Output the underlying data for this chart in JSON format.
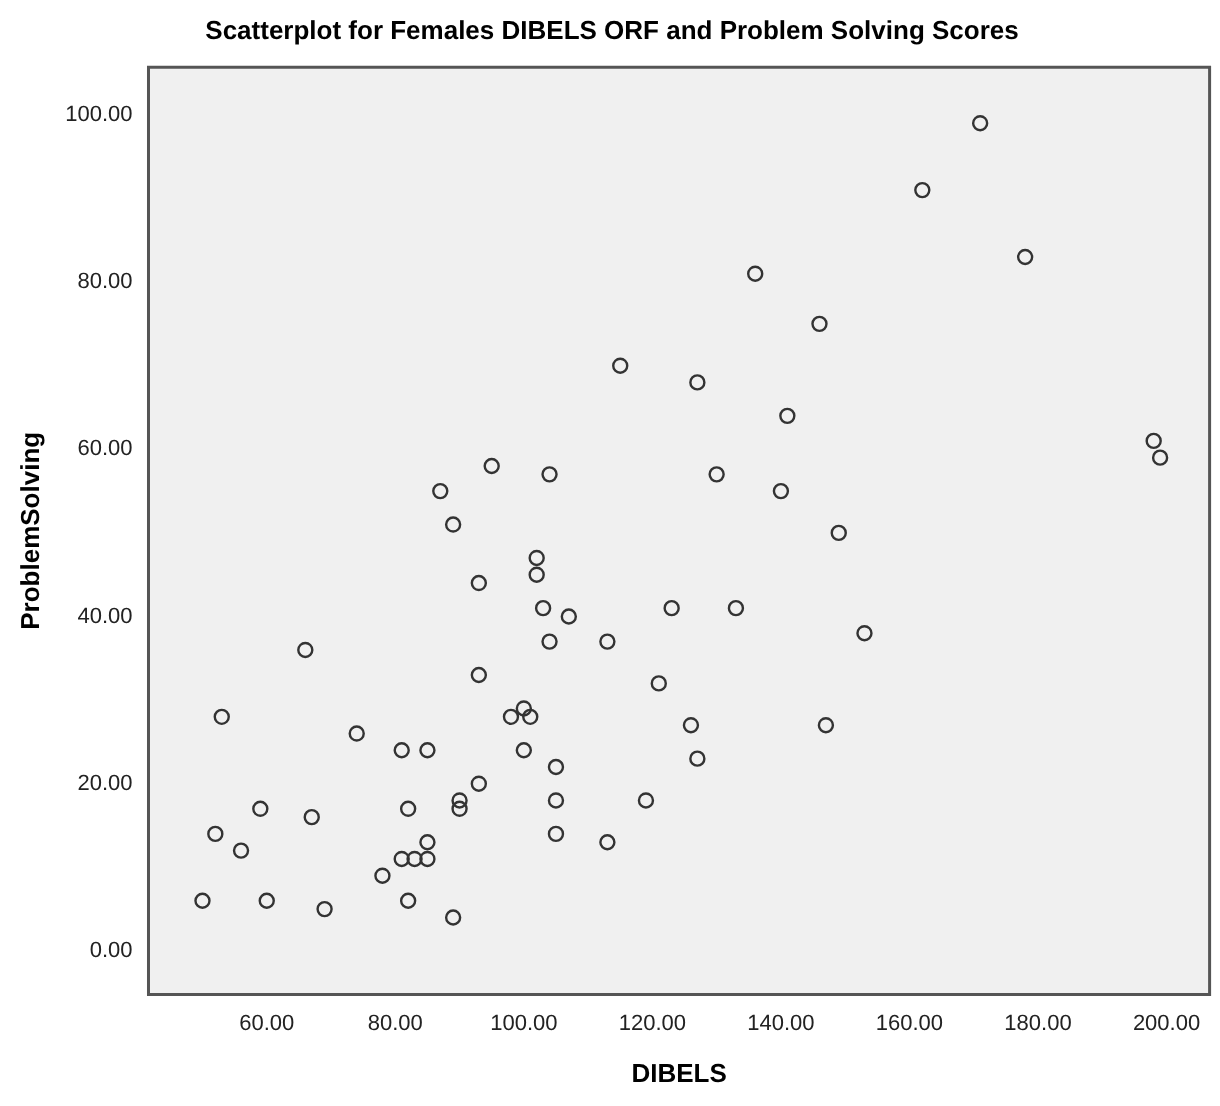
{
  "chart_data": {
    "type": "scatter",
    "title": "Scatterplot for Females DIBELS ORF and Problem Solving Scores",
    "xlabel": "DIBELS",
    "ylabel": "ProblemSolving",
    "x": [
      50,
      52,
      53,
      56,
      59,
      60,
      66,
      67,
      69,
      74,
      78,
      81,
      81,
      82,
      82,
      83,
      85,
      85,
      85,
      87,
      89,
      89,
      90,
      90,
      93,
      93,
      93,
      95,
      98,
      100,
      100,
      101,
      102,
      102,
      103,
      104,
      104,
      105,
      105,
      105,
      107,
      113,
      113,
      115,
      119,
      121,
      123,
      126,
      127,
      127,
      130,
      133,
      136,
      140,
      141,
      146,
      147,
      149,
      153,
      162,
      171,
      178,
      198,
      199
    ],
    "values": [
      6,
      14,
      28,
      12,
      17,
      6,
      36,
      16,
      5,
      26,
      9,
      11,
      24,
      17,
      6,
      11,
      11,
      13,
      24,
      55,
      51,
      4,
      18,
      17,
      44,
      33,
      20,
      58,
      28,
      29,
      24,
      28,
      47,
      45,
      41,
      37,
      57,
      22,
      18,
      14,
      40,
      37,
      13,
      70,
      18,
      32,
      41,
      27,
      23,
      68,
      57,
      41,
      81,
      55,
      64,
      75,
      27,
      50,
      38,
      91,
      99,
      83,
      61,
      59
    ],
    "color": "#333333",
    "marker": "circle",
    "grid": false,
    "legend": false,
    "xlim": [
      41.6,
      206.7
    ],
    "ylim": [
      -5.2,
      105.7
    ],
    "xticks": [
      {
        "value": 60,
        "label": "60.00"
      },
      {
        "value": 80,
        "label": "80.00"
      },
      {
        "value": 100,
        "label": "100.00"
      },
      {
        "value": 120,
        "label": "120.00"
      },
      {
        "value": 140,
        "label": "140.00"
      },
      {
        "value": 160,
        "label": "160.00"
      },
      {
        "value": 180,
        "label": "180.00"
      },
      {
        "value": 200,
        "label": "200.00"
      }
    ],
    "yticks": [
      {
        "value": 0,
        "label": "0.00"
      },
      {
        "value": 20,
        "label": "20.00"
      },
      {
        "value": 40,
        "label": "40.00"
      },
      {
        "value": 60,
        "label": "60.00"
      },
      {
        "value": 80,
        "label": "80.00"
      },
      {
        "value": 100,
        "label": "100.00"
      }
    ]
  }
}
